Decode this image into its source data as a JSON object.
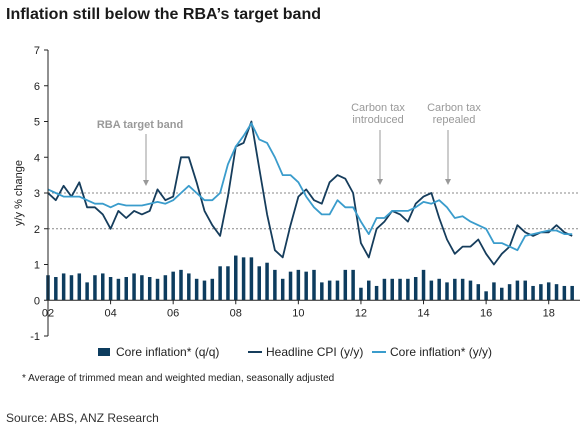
{
  "chart_data": {
    "type": "line",
    "title": "Inflation still below the RBA’s target band",
    "ylabel": "y/y % change",
    "xlabel": "",
    "ylim": [
      -1,
      7
    ],
    "xlim": [
      2002,
      2019
    ],
    "yticks": [
      -1,
      0,
      1,
      2,
      3,
      4,
      5,
      6,
      7
    ],
    "xticks": [
      "02",
      "04",
      "06",
      "08",
      "10",
      "12",
      "14",
      "16",
      "18"
    ],
    "xtick_years": [
      2002,
      2004,
      2006,
      2008,
      2010,
      2012,
      2014,
      2016,
      2018
    ],
    "target_band": [
      2,
      3
    ],
    "grid": false,
    "legend_position": "bottom",
    "annotations": [
      {
        "text": [
          "RBA target band"
        ],
        "x": 2005.2,
        "y": 3
      },
      {
        "text": [
          "Carbon tax",
          "introduced"
        ],
        "x": 2012.5,
        "y": 3.2
      },
      {
        "text": [
          "Carbon tax",
          "repealed"
        ],
        "x": 2014.75,
        "y": 3.2
      }
    ],
    "colors": {
      "core_qq": "#0d3c5e",
      "headline": "#163d5c",
      "core_yy": "#3a9ccc",
      "band": "#888888"
    },
    "series": [
      {
        "name": "Core inflation* (q/q)",
        "kind": "bar",
        "x": [
          2002.0,
          2002.25,
          2002.5,
          2002.75,
          2003.0,
          2003.25,
          2003.5,
          2003.75,
          2004.0,
          2004.25,
          2004.5,
          2004.75,
          2005.0,
          2005.25,
          2005.5,
          2005.75,
          2006.0,
          2006.25,
          2006.5,
          2006.75,
          2007.0,
          2007.25,
          2007.5,
          2007.75,
          2008.0,
          2008.25,
          2008.5,
          2008.75,
          2009.0,
          2009.25,
          2009.5,
          2009.75,
          2010.0,
          2010.25,
          2010.5,
          2010.75,
          2011.0,
          2011.25,
          2011.5,
          2011.75,
          2012.0,
          2012.25,
          2012.5,
          2012.75,
          2013.0,
          2013.25,
          2013.5,
          2013.75,
          2014.0,
          2014.25,
          2014.5,
          2014.75,
          2015.0,
          2015.25,
          2015.5,
          2015.75,
          2016.0,
          2016.25,
          2016.5,
          2016.75,
          2017.0,
          2017.25,
          2017.5,
          2017.75,
          2018.0,
          2018.25,
          2018.5,
          2018.75
        ],
        "values": [
          0.7,
          0.65,
          0.75,
          0.7,
          0.75,
          0.5,
          0.7,
          0.75,
          0.65,
          0.6,
          0.65,
          0.75,
          0.7,
          0.65,
          0.6,
          0.7,
          0.8,
          0.85,
          0.75,
          0.6,
          0.55,
          0.6,
          0.95,
          0.95,
          1.25,
          1.2,
          1.2,
          0.95,
          1.05,
          0.85,
          0.6,
          0.8,
          0.85,
          0.8,
          0.85,
          0.5,
          0.55,
          0.55,
          0.85,
          0.85,
          0.35,
          0.55,
          0.4,
          0.6,
          0.6,
          0.6,
          0.6,
          0.65,
          0.85,
          0.55,
          0.6,
          0.5,
          0.6,
          0.6,
          0.55,
          0.45,
          0.25,
          0.5,
          0.35,
          0.45,
          0.55,
          0.55,
          0.4,
          0.45,
          0.5,
          0.45,
          0.4,
          0.4
        ]
      },
      {
        "name": "Headline CPI (y/y)",
        "kind": "line",
        "x": [
          2002.0,
          2002.25,
          2002.5,
          2002.75,
          2003.0,
          2003.25,
          2003.5,
          2003.75,
          2004.0,
          2004.25,
          2004.5,
          2004.75,
          2005.0,
          2005.25,
          2005.5,
          2005.75,
          2006.0,
          2006.25,
          2006.5,
          2006.75,
          2007.0,
          2007.25,
          2007.5,
          2007.75,
          2008.0,
          2008.25,
          2008.5,
          2008.75,
          2009.0,
          2009.25,
          2009.5,
          2009.75,
          2010.0,
          2010.25,
          2010.5,
          2010.75,
          2011.0,
          2011.25,
          2011.5,
          2011.75,
          2012.0,
          2012.25,
          2012.5,
          2012.75,
          2013.0,
          2013.25,
          2013.5,
          2013.75,
          2014.0,
          2014.25,
          2014.5,
          2014.75,
          2015.0,
          2015.25,
          2015.5,
          2015.75,
          2016.0,
          2016.25,
          2016.5,
          2016.75,
          2017.0,
          2017.25,
          2017.5,
          2017.75,
          2018.0,
          2018.25,
          2018.5,
          2018.75
        ],
        "values": [
          3.0,
          2.8,
          3.2,
          2.9,
          3.3,
          2.6,
          2.6,
          2.4,
          2.0,
          2.5,
          2.3,
          2.5,
          2.4,
          2.5,
          3.1,
          2.8,
          2.9,
          4.0,
          4.0,
          3.3,
          2.5,
          2.1,
          1.8,
          2.9,
          4.3,
          4.4,
          5.0,
          3.7,
          2.4,
          1.4,
          1.2,
          2.1,
          2.9,
          3.1,
          2.8,
          2.7,
          3.3,
          3.5,
          3.4,
          3.0,
          1.6,
          1.2,
          2.0,
          2.2,
          2.5,
          2.4,
          2.2,
          2.7,
          2.9,
          3.0,
          2.3,
          1.7,
          1.3,
          1.5,
          1.5,
          1.7,
          1.3,
          1.0,
          1.3,
          1.5,
          2.1,
          1.9,
          1.8,
          1.9,
          1.9,
          2.1,
          1.9,
          1.8
        ]
      },
      {
        "name": "Core inflation* (y/y)",
        "kind": "line",
        "x": [
          2002.0,
          2002.25,
          2002.5,
          2002.75,
          2003.0,
          2003.25,
          2003.5,
          2003.75,
          2004.0,
          2004.25,
          2004.5,
          2004.75,
          2005.0,
          2005.25,
          2005.5,
          2005.75,
          2006.0,
          2006.25,
          2006.5,
          2006.75,
          2007.0,
          2007.25,
          2007.5,
          2007.75,
          2008.0,
          2008.25,
          2008.5,
          2008.75,
          2009.0,
          2009.25,
          2009.5,
          2009.75,
          2010.0,
          2010.25,
          2010.5,
          2010.75,
          2011.0,
          2011.25,
          2011.5,
          2011.75,
          2012.0,
          2012.25,
          2012.5,
          2012.75,
          2013.0,
          2013.25,
          2013.5,
          2013.75,
          2014.0,
          2014.25,
          2014.5,
          2014.75,
          2015.0,
          2015.25,
          2015.5,
          2015.75,
          2016.0,
          2016.25,
          2016.5,
          2016.75,
          2017.0,
          2017.25,
          2017.5,
          2017.75,
          2018.0,
          2018.25,
          2018.5,
          2018.75
        ],
        "values": [
          3.1,
          3.0,
          2.9,
          2.9,
          2.9,
          2.8,
          2.7,
          2.7,
          2.6,
          2.7,
          2.65,
          2.65,
          2.65,
          2.7,
          2.75,
          2.7,
          2.8,
          3.0,
          3.2,
          3.0,
          2.8,
          2.8,
          3.0,
          3.8,
          4.3,
          4.6,
          4.95,
          4.5,
          4.4,
          4.0,
          3.5,
          3.5,
          3.3,
          2.9,
          2.6,
          2.4,
          2.4,
          2.8,
          2.6,
          2.6,
          2.2,
          1.85,
          2.3,
          2.3,
          2.5,
          2.5,
          2.5,
          2.6,
          2.75,
          2.7,
          2.8,
          2.6,
          2.3,
          2.35,
          2.2,
          2.1,
          2.0,
          1.6,
          1.6,
          1.5,
          1.4,
          1.8,
          1.85,
          1.9,
          1.95,
          1.95,
          1.85,
          1.85
        ]
      }
    ]
  },
  "footnote": "* Average of trimmed mean and weighted median, seasonally adjusted",
  "source": "Source: ABS, ANZ Research"
}
